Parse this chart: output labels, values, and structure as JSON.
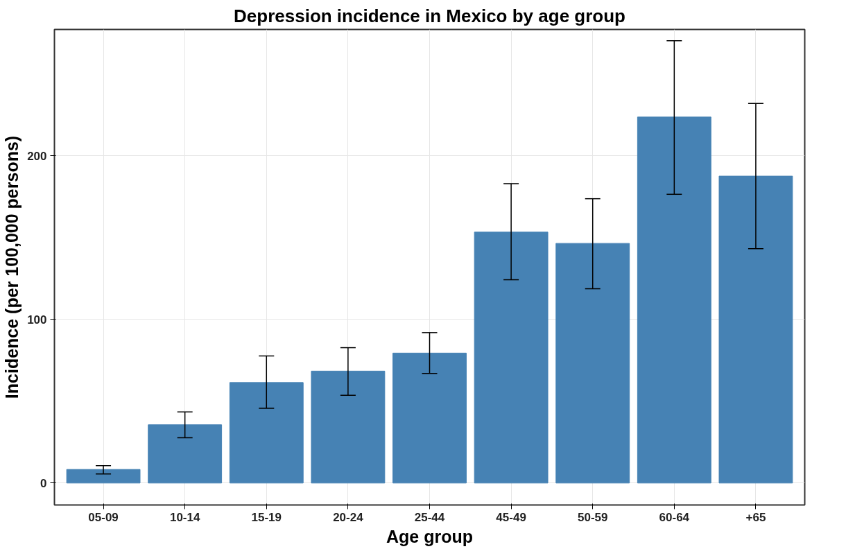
{
  "chart_data": {
    "type": "bar",
    "title": "Depression incidence in Mexico by age group",
    "xlabel": "Age group",
    "ylabel": "Incidence (per 100,000 persons)",
    "categories": [
      "05-09",
      "10-14",
      "15-19",
      "20-24",
      "25-44",
      "45-49",
      "50-59",
      "60-64",
      "+65"
    ],
    "values": [
      8.3,
      35.6,
      61.4,
      68.4,
      79.4,
      153.3,
      146.4,
      223.6,
      187.5
    ],
    "errors": [
      [
        5.5,
        10.6
      ],
      [
        27.7,
        43.4
      ],
      [
        45.7,
        77.6
      ],
      [
        53.6,
        82.7
      ],
      [
        67,
        91.9
      ],
      [
        124.2,
        182.9
      ],
      [
        118.7,
        173.7
      ],
      [
        176.4,
        270.2
      ],
      [
        143.2,
        231.9
      ]
    ],
    "color": "#4682b4",
    "ylim": [
      -13.4,
      277.1
    ],
    "yticks": [
      0,
      100,
      200
    ],
    "grid": true
  }
}
